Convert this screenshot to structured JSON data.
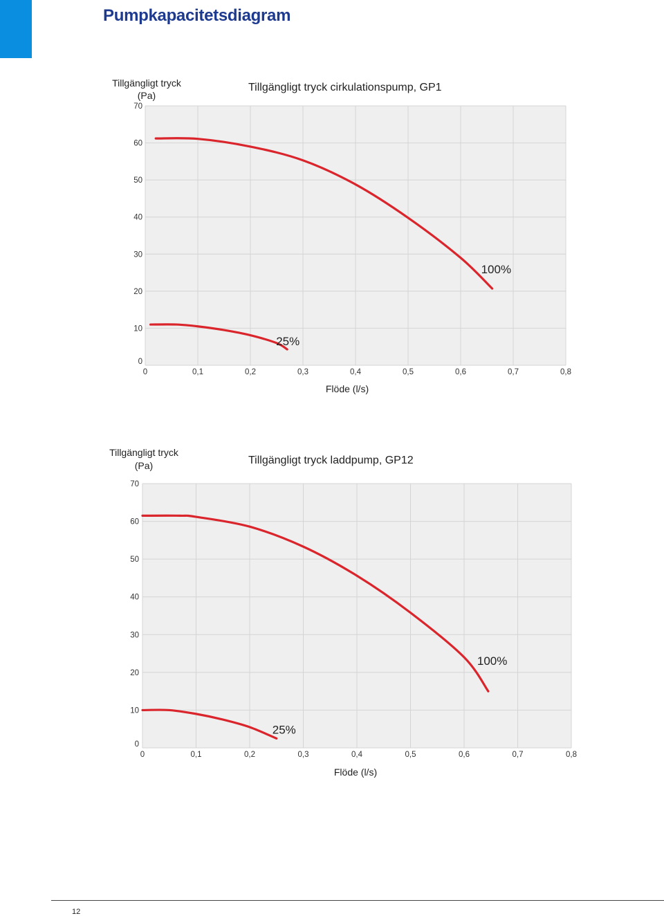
{
  "page": {
    "title": "Pumpkapacitetsdiagram",
    "page_number": "12",
    "accent_color": "#0a8ee0",
    "title_color": "#1d3a8f"
  },
  "chart_data": [
    {
      "type": "line",
      "title": "Tillgängligt tryck cirkulationspump, GP1",
      "ylabel_line1": "Tillgängligt tryck",
      "ylabel_line2": "(Pa)",
      "xlabel": "Flöde (l/s)",
      "xlim": [
        0,
        0.8
      ],
      "ylim": [
        0,
        70
      ],
      "x_ticks": [
        "0",
        "0,1",
        "0,2",
        "0,3",
        "0,4",
        "0,5",
        "0,6",
        "0,7",
        "0,8"
      ],
      "y_ticks": [
        "0",
        "10",
        "20",
        "30",
        "40",
        "50",
        "60",
        "70"
      ],
      "grid": true,
      "background_color": "#efefef",
      "line_color": "#d9252b",
      "series": [
        {
          "name": "100%",
          "points": [
            [
              0.02,
              61.2
            ],
            [
              0.1,
              61.1
            ],
            [
              0.2,
              59.0
            ],
            [
              0.3,
              55.3
            ],
            [
              0.4,
              48.8
            ],
            [
              0.5,
              39.8
            ],
            [
              0.6,
              29.0
            ],
            [
              0.66,
              20.7
            ]
          ]
        },
        {
          "name": "25%",
          "points": [
            [
              0.01,
              11.0
            ],
            [
              0.06,
              11.0
            ],
            [
              0.1,
              10.5
            ],
            [
              0.15,
              9.5
            ],
            [
              0.2,
              8.1
            ],
            [
              0.25,
              6.0
            ],
            [
              0.27,
              4.3
            ]
          ]
        }
      ]
    },
    {
      "type": "line",
      "title": "Tillgängligt tryck laddpump, GP12",
      "ylabel_line1": "Tillgängligt tryck",
      "ylabel_line2": "(Pa)",
      "xlabel": "Flöde (l/s)",
      "xlim": [
        0,
        0.8
      ],
      "ylim": [
        0,
        70
      ],
      "x_ticks": [
        "0",
        "0,1",
        "0,2",
        "0,3",
        "0,4",
        "0,5",
        "0,6",
        "0,7",
        "0,8"
      ],
      "y_ticks": [
        "0",
        "10",
        "20",
        "30",
        "40",
        "50",
        "60",
        "70"
      ],
      "grid": true,
      "background_color": "#efefef",
      "line_color": "#d9252b",
      "series": [
        {
          "name": "100%",
          "points": [
            [
              0.0,
              61.5
            ],
            [
              0.07,
              61.5
            ],
            [
              0.1,
              61.2
            ],
            [
              0.2,
              58.6
            ],
            [
              0.3,
              53.3
            ],
            [
              0.4,
              45.6
            ],
            [
              0.5,
              35.8
            ],
            [
              0.6,
              24.0
            ],
            [
              0.645,
              15.0
            ]
          ]
        },
        {
          "name": "25%",
          "points": [
            [
              0.0,
              10.0
            ],
            [
              0.05,
              10.0
            ],
            [
              0.1,
              9.0
            ],
            [
              0.15,
              7.5
            ],
            [
              0.2,
              5.5
            ],
            [
              0.25,
              2.5
            ]
          ]
        }
      ]
    }
  ]
}
